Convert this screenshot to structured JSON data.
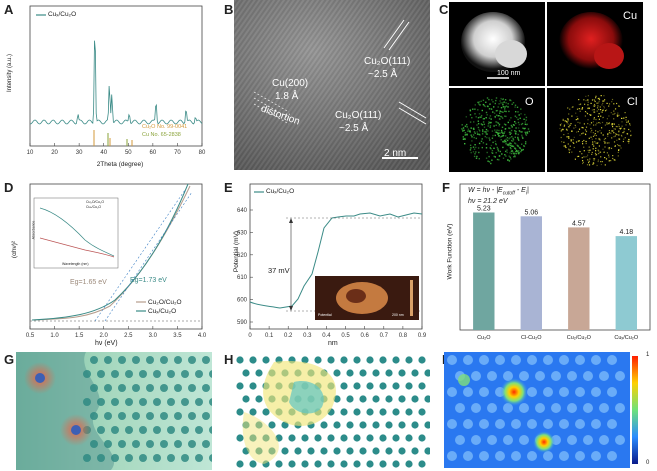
{
  "figure": {
    "panel_labels": [
      "A",
      "B",
      "C",
      "D",
      "E",
      "F",
      "G",
      "H",
      "I"
    ]
  },
  "panel_a": {
    "legend": "Cuₓ/Cu₂O",
    "ylabel": "Intensity (a.u.)",
    "xlabel": "2Theta (degree)",
    "xticks": [
      "10",
      "20",
      "30",
      "40",
      "50",
      "60",
      "70",
      "80"
    ],
    "ref1": "Cu₂O No. 99-0041",
    "ref2": "Cu No. 65-2838"
  },
  "panel_b": {
    "ann1": "Cu(200)",
    "ann1b": "1.8 Å",
    "ann2": "Cu₂O(111)",
    "ann2b": "~2.5 Å",
    "ann3": "Cu₂O(111)",
    "ann3b": "~2.5 Å",
    "ann4": "distortion",
    "scalebar": "2 nm"
  },
  "panel_c": {
    "label_cu": "Cu",
    "label_o": "O",
    "label_cl": "Cl",
    "scalebar": "100 nm"
  },
  "panel_d": {
    "ylabel": "(αhν)²",
    "xlabel": "hν (eV)",
    "xticks": [
      "0.5",
      "1.0",
      "1.5",
      "2.0",
      "2.5",
      "3.0",
      "3.5",
      "4.0"
    ],
    "eg1": "Eg=1.65 eV",
    "eg2": "Eg=1.73 eV",
    "legend1": "Cu₂O/Cu₂O",
    "legend2": "Cuₓ/Cu₂O",
    "inset_ylabel": "Absorbance",
    "inset_xlabel": "Wavelength (nm)",
    "inset_legend1": "Cu₂O/Cu₂O",
    "inset_legend2": "Cuₓ/Cu₂O"
  },
  "panel_e": {
    "legend": "Cuₓ/Cu₂O",
    "ylabel": "Potential (mV)",
    "xlabel": "nm",
    "yticks": [
      "590",
      "600",
      "610",
      "620",
      "630",
      "640"
    ],
    "xticks": [
      "0",
      "0.1",
      "0.2",
      "0.3",
      "0.4",
      "0.5",
      "0.6",
      "0.7",
      "0.8",
      "0.9"
    ],
    "delta": "37 mV",
    "inset_left": "Potential",
    "inset_right": "200 nm"
  },
  "panel_f": {
    "formula1": "W = hν - |E",
    "formula1_sub1": "cutoff",
    "formula1_mid": " - E",
    "formula1_sub2": "i",
    "formula1_end": "|",
    "formula2": "hν = 21.2 eV",
    "ylabel": "Work Function (eV)",
    "colors": [
      "#6fa6a0",
      "#a9b4d4",
      "#c8a796",
      "#8ecad2"
    ],
    "chart_data": {
      "type": "bar",
      "categories": [
        "Cu₂O",
        "Cl-Cu₂O",
        "Cu₂/Cu₂O",
        "Cuₓ/Cu₂O"
      ],
      "values": [
        5.23,
        5.06,
        4.57,
        4.18
      ],
      "value_labels": [
        "5.23",
        "5.06",
        "4.57",
        "4.18"
      ],
      "ylabel": "Work Function (eV)",
      "ylim": [
        0,
        6.5
      ]
    }
  },
  "panel_i": {
    "cbar_max": "1",
    "cbar_min": "0"
  }
}
